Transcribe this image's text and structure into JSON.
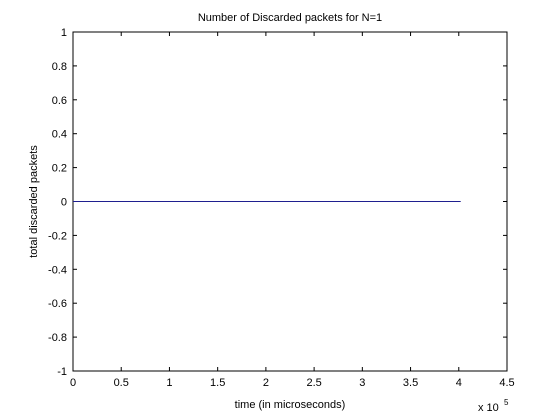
{
  "chart_data": {
    "type": "line",
    "title": "Number of Discarded packets for N=1",
    "xlabel": "time (in microseconds)",
    "ylabel": "total discarded packets",
    "x_multiplier_base": "x 10",
    "x_multiplier_exponent": "5",
    "xlim": [
      0,
      4.5
    ],
    "ylim": [
      -1,
      1
    ],
    "xticks": [
      0,
      0.5,
      1,
      1.5,
      2,
      2.5,
      3,
      3.5,
      4,
      4.5
    ],
    "xtick_labels": [
      "0",
      "0.5",
      "1",
      "1.5",
      "2",
      "2.5",
      "3",
      "3.5",
      "4",
      "4.5"
    ],
    "yticks": [
      -1,
      -0.8,
      -0.6,
      -0.4,
      -0.2,
      0,
      0.2,
      0.4,
      0.6,
      0.8,
      1
    ],
    "ytick_labels": [
      "-1",
      "-0.8",
      "-0.6",
      "-0.4",
      "-0.2",
      "0",
      "0.2",
      "0.4",
      "0.6",
      "0.8",
      "1"
    ],
    "grid": false,
    "series": [
      {
        "x": [
          0,
          4.02
        ],
        "y": [
          0,
          0
        ],
        "color": "#1f1f8f"
      }
    ]
  }
}
